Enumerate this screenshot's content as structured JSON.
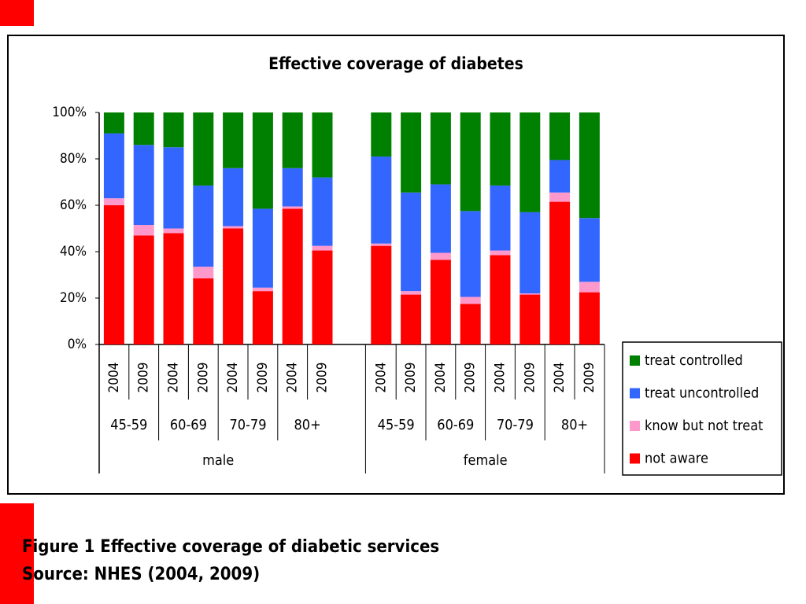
{
  "chart_data": {
    "type": "stacked_bar",
    "title": "Effective coverage of diabetes",
    "categories": [
      "2004",
      "2009",
      "2004",
      "2009",
      "2004",
      "2009",
      "2004",
      "2009",
      "2004",
      "2009",
      "2004",
      "2009",
      "2004",
      "2009",
      "2004",
      "2009"
    ],
    "age_groups": [
      "45-59",
      "60-69",
      "70-79",
      "80+",
      "45-59",
      "60-69",
      "70-79",
      "80+"
    ],
    "sexes": [
      "male",
      "female"
    ],
    "series": [
      {
        "name": "not aware",
        "color": "#ff0000",
        "values": [
          60,
          47,
          48,
          28.5,
          50,
          23,
          58.5,
          40.5,
          42.5,
          21.5,
          36.5,
          17.5,
          38.5,
          21.5,
          61.5,
          22.5
        ]
      },
      {
        "name": "know but not treat",
        "color": "#ff99cc",
        "values": [
          3,
          4.5,
          2,
          5,
          1,
          1.5,
          1,
          2,
          1,
          1.5,
          3,
          3,
          2,
          0.5,
          4,
          4.5
        ]
      },
      {
        "name": "treat uncontrolled",
        "color": "#3366ff",
        "values": [
          28,
          34.5,
          35,
          35,
          25,
          34,
          16.5,
          29.5,
          37.5,
          42.5,
          29.5,
          37,
          28,
          35,
          14,
          27.5
        ]
      },
      {
        "name": "treat controlled",
        "color": "#008000",
        "values": [
          9,
          14,
          15,
          31.5,
          24,
          41.5,
          24,
          28,
          19,
          34.5,
          31,
          42.5,
          31.5,
          43,
          20.5,
          45.5
        ]
      }
    ],
    "ylim": [
      0,
      100
    ],
    "yticks": [
      {
        "value": 0,
        "label": "0%"
      },
      {
        "value": 20,
        "label": "20%"
      },
      {
        "value": 40,
        "label": "40%"
      },
      {
        "value": 60,
        "label": "60%"
      },
      {
        "value": 80,
        "label": "80%"
      },
      {
        "value": 100,
        "label": "100%"
      }
    ],
    "legend": "right"
  },
  "caption": {
    "figure": "Figure 1 Effective coverage of diabetic services",
    "source": "Source: NHES (2004, 2009)"
  }
}
